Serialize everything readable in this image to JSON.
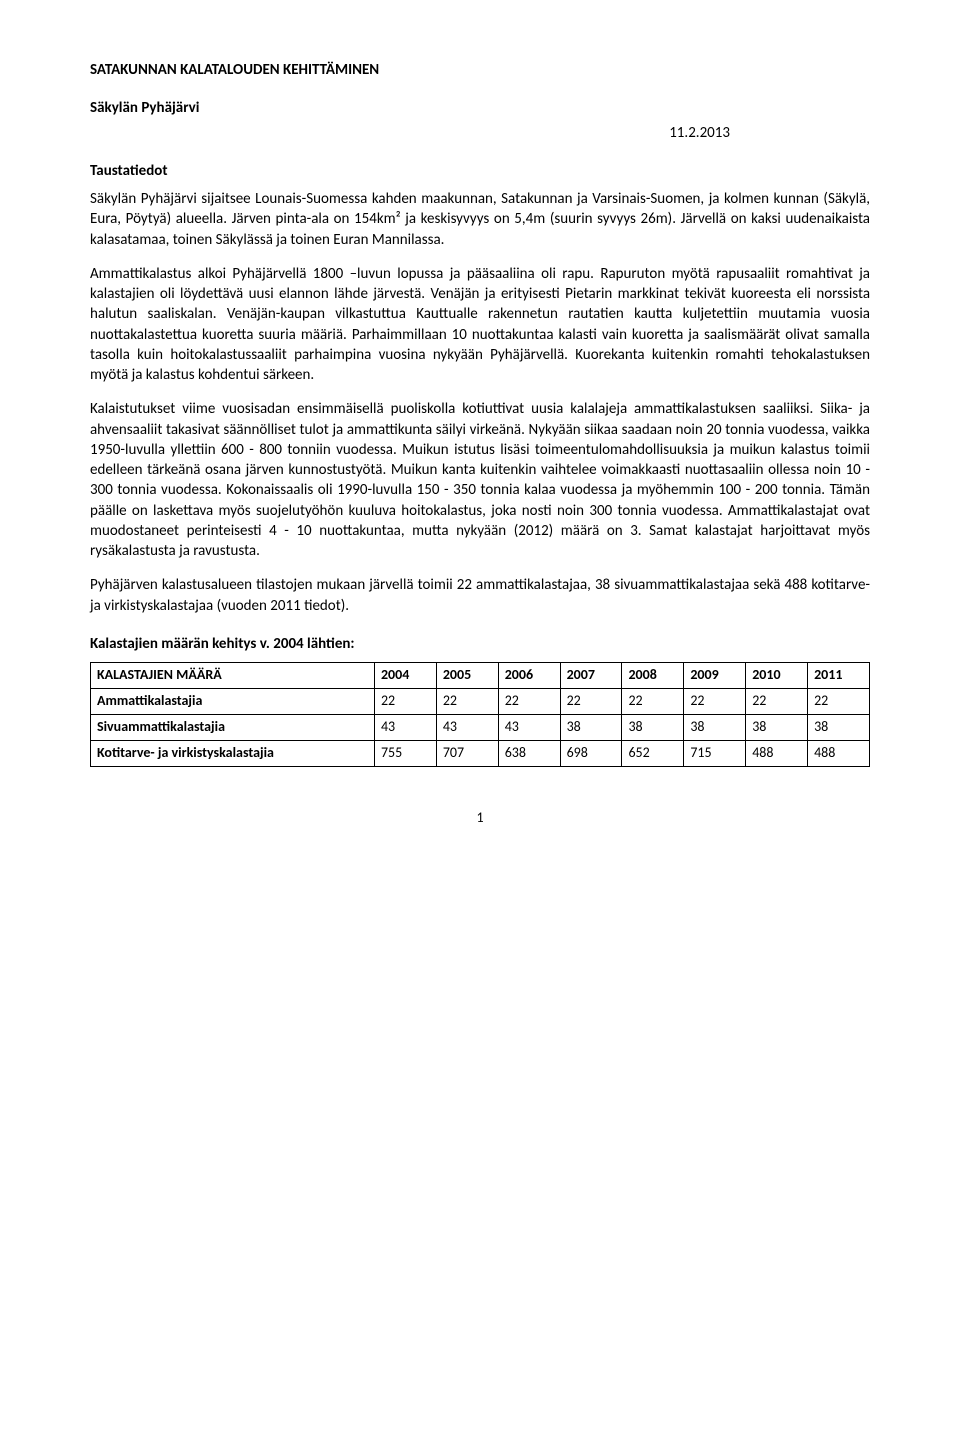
{
  "title": "SATAKUNNAN KALATALOUDEN KEHITTÄMINEN",
  "subtitle": "Säkylän Pyhäjärvi",
  "date": "11.2.2013",
  "section1_heading": "Taustatiedot",
  "para1": "Säkylän Pyhäjärvi sijaitsee Lounais-Suomessa kahden maakunnan, Satakunnan ja Varsinais-Suomen, ja kolmen kunnan (Säkylä, Eura, Pöytyä) alueella. Järven pinta-ala on 154km² ja keskisyvyys on 5,4m (suurin syvyys 26m). Järvellä on kaksi uudenaikaista kalasatamaa, toinen Säkylässä ja toinen Euran Mannilassa.",
  "para2": "Ammattikalastus alkoi Pyhäjärvellä 1800 –luvun lopussa ja pääsaaliina oli rapu. Rapuruton myötä rapusaaliit romahtivat ja kalastajien oli löydettävä uusi elannon lähde järvestä. Venäjän ja erityisesti Pietarin markkinat tekivät kuoreesta eli norssista halutun saaliskalan. Venäjän-kaupan vilkastuttua Kauttualle rakennetun rautatien kautta kuljetettiin muutamia vuosia nuottakalastettua kuoretta suuria määriä. Parhaimmillaan 10 nuottakuntaa kalasti vain kuoretta ja saalismäärät olivat samalla tasolla kuin hoitokalastussaaliit parhaimpina vuosina nykyään Pyhäjärvellä. Kuorekanta kuitenkin romahti tehokalastuksen myötä ja kalastus kohdentui särkeen.",
  "para3": "Kalaistutukset viime vuosisadan ensimmäisellä puoliskolla kotiuttivat uusia kalalajeja ammattikalastuksen saaliiksi. Siika- ja ahvensaaliit takasivat säännölliset tulot ja ammattikunta säilyi virkeänä. Nykyään siikaa saadaan noin 20 tonnia vuodessa, vaikka 1950-luvulla yllettiin 600 - 800 tonniin vuodessa. Muikun istutus lisäsi toimeentulomahdollisuuksia ja muikun kalastus toimii edelleen tärkeänä osana järven kunnostustyötä. Muikun kanta kuitenkin vaihtelee voimakkaasti nuottasaaliin ollessa noin 10 - 300 tonnia vuodessa. Kokonaissaalis oli 1990-luvulla 150 - 350 tonnia kalaa vuodessa ja myöhemmin 100 - 200 tonnia. Tämän päälle on laskettava myös suojelutyöhön kuuluva hoitokalastus, joka nosti noin 300 tonnia vuodessa. Ammattikalastajat ovat muodostaneet perinteisesti 4 - 10 nuottakuntaa, mutta nykyään (2012) määrä on 3. Samat kalastajat harjoittavat myös rysäkalastusta ja ravustusta.",
  "para4": "Pyhäjärven kalastusalueen tilastojen mukaan järvellä toimii 22 ammattikalastajaa, 38 sivuammattikalastajaa sekä 488 kotitarve- ja virkistyskalastajaa (vuoden 2011 tiedot).",
  "table_heading": "Kalastajien määrän kehitys v. 2004 lähtien:",
  "table": {
    "columns": [
      "KALASTAJIEN MÄÄRÄ",
      "2004",
      "2005",
      "2006",
      "2007",
      "2008",
      "2009",
      "2010",
      "2011"
    ],
    "rows": [
      [
        "Ammattikalastajia",
        "22",
        "22",
        "22",
        "22",
        "22",
        "22",
        "22",
        "22"
      ],
      [
        "Sivuammattikalastajia",
        "43",
        "43",
        "43",
        "38",
        "38",
        "38",
        "38",
        "38"
      ],
      [
        "Kotitarve- ja virkistyskalastajia",
        "755",
        "707",
        "638",
        "698",
        "652",
        "715",
        "488",
        "488"
      ]
    ]
  },
  "page_number": "1"
}
